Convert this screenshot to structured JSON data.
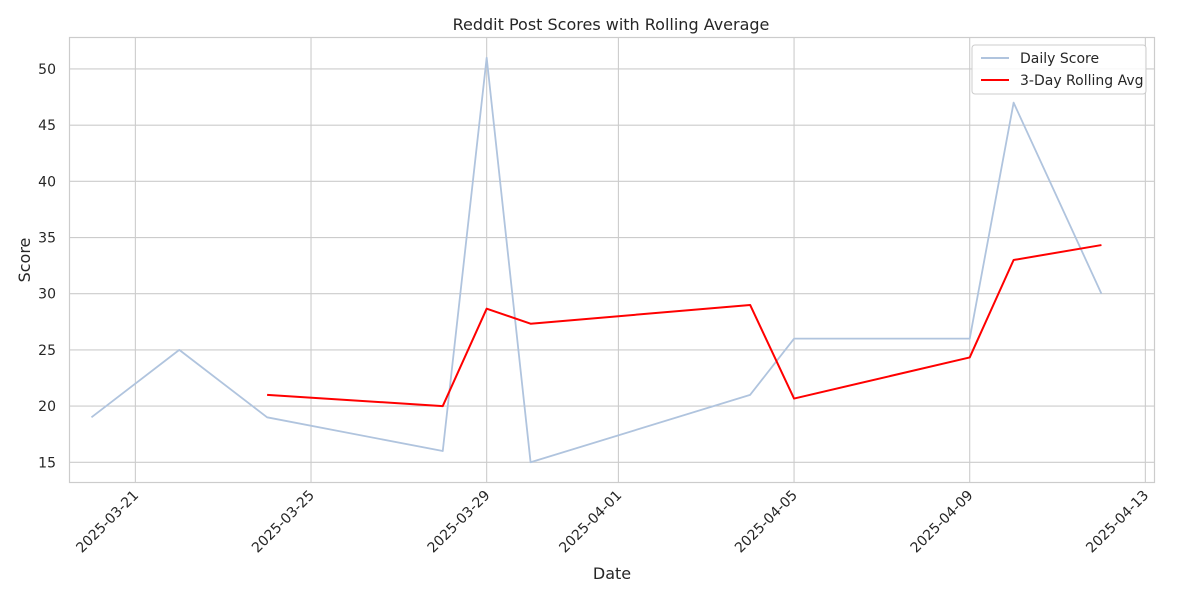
{
  "chart_data": {
    "type": "line",
    "title": "Reddit Post Scores with Rolling Average",
    "xlabel": "Date",
    "ylabel": "Score",
    "xlim": [
      "2025-03-19T12:00",
      "2025-04-13T05:00"
    ],
    "ylim": [
      13.2,
      52.8
    ],
    "x_ticks": [
      "2025-03-21",
      "2025-03-25",
      "2025-03-29",
      "2025-04-01",
      "2025-04-05",
      "2025-04-09",
      "2025-04-13"
    ],
    "y_ticks": [
      15,
      20,
      25,
      30,
      35,
      40,
      45,
      50
    ],
    "grid": true,
    "legend_position": "top-right",
    "series": [
      {
        "name": "Daily Score",
        "color": "#b0c4de",
        "x": [
          "2025-03-20",
          "2025-03-22",
          "2025-03-24",
          "2025-03-28",
          "2025-03-29",
          "2025-03-30",
          "2025-04-04",
          "2025-04-05",
          "2025-04-09",
          "2025-04-10",
          "2025-04-12"
        ],
        "y": [
          19,
          25,
          19,
          16,
          51,
          15,
          21,
          26,
          26,
          47,
          30
        ]
      },
      {
        "name": "3-Day Rolling Avg",
        "color": "#ff0000",
        "x": [
          "2025-03-24",
          "2025-03-28",
          "2025-03-29",
          "2025-03-30",
          "2025-04-04",
          "2025-04-05",
          "2025-04-09",
          "2025-04-10",
          "2025-04-12"
        ],
        "y": [
          21,
          20,
          28.67,
          27.33,
          29,
          20.67,
          24.33,
          33,
          34.33
        ]
      }
    ]
  }
}
